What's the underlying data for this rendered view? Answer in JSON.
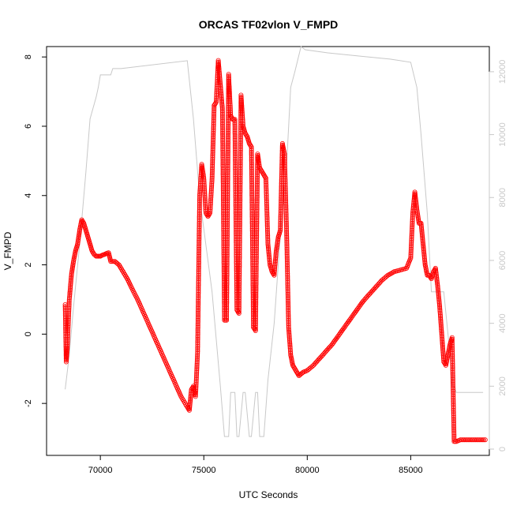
{
  "chart_data": {
    "type": "scatter",
    "title": "ORCAS TF02vlon V_FMPD",
    "xlabel": "UTC Seconds",
    "ylabel": "V_FMPD",
    "xlim": [
      67400,
      88800
    ],
    "ylim": [
      -3.5,
      8.3
    ],
    "x_ticks": [
      70000,
      75000,
      80000,
      85000
    ],
    "y_ticks": [
      -2,
      0,
      2,
      4,
      6,
      8
    ],
    "y2lim": [
      -200,
      12800
    ],
    "y2_ticks": [
      0,
      2000,
      4000,
      6000,
      8000,
      10000,
      12000
    ],
    "grid": false,
    "series": [
      {
        "marker": "open-circle",
        "color": "#ff0000",
        "y_axis": "left",
        "line_color": "#ff0000",
        "x": [
          68300,
          68350,
          68400,
          68450,
          68500,
          68600,
          68700,
          68800,
          68900,
          69000,
          69100,
          69200,
          69300,
          69400,
          69500,
          69600,
          69700,
          69800,
          69900,
          70000,
          70100,
          70200,
          70300,
          70400,
          70500,
          70700,
          70900,
          71100,
          71300,
          71500,
          71800,
          72100,
          72400,
          72700,
          73000,
          73300,
          73600,
          73900,
          74200,
          74300,
          74400,
          74500,
          74600,
          74700,
          74800,
          74900,
          75000,
          75100,
          75200,
          75300,
          75400,
          75500,
          75600,
          75700,
          75800,
          75900,
          76000,
          76100,
          76200,
          76300,
          76400,
          76500,
          76600,
          76700,
          76800,
          76900,
          77000,
          77100,
          77200,
          77300,
          77400,
          77500,
          77600,
          77700,
          77800,
          77900,
          78000,
          78100,
          78200,
          78300,
          78400,
          78500,
          78600,
          78700,
          78800,
          78900,
          79000,
          79100,
          79200,
          79300,
          79400,
          79500,
          79600,
          79700,
          79800,
          80000,
          80300,
          80600,
          80900,
          81200,
          81500,
          81800,
          82100,
          82400,
          82700,
          83000,
          83300,
          83600,
          83900,
          84200,
          84500,
          84800,
          85000,
          85100,
          85200,
          85300,
          85400,
          85500,
          85600,
          85700,
          85800,
          85900,
          86000,
          86100,
          86200,
          86300,
          86400,
          86500,
          86600,
          86700,
          86800,
          86900,
          87000,
          87100,
          87200,
          87400,
          87600,
          87800,
          88000,
          88200,
          88400,
          88600
        ],
        "y": [
          0.85,
          -0.8,
          -0.4,
          0.3,
          1.0,
          1.7,
          2.1,
          2.4,
          2.6,
          3.0,
          3.3,
          3.2,
          3.0,
          2.8,
          2.6,
          2.4,
          2.3,
          2.25,
          2.25,
          2.25,
          2.28,
          2.3,
          2.33,
          2.35,
          2.1,
          2.1,
          2.0,
          1.8,
          1.6,
          1.35,
          1.0,
          0.6,
          0.2,
          -0.2,
          -0.6,
          -1.0,
          -1.4,
          -1.8,
          -2.1,
          -2.2,
          -1.6,
          -1.5,
          -1.8,
          -0.5,
          4.0,
          4.9,
          4.5,
          3.5,
          3.4,
          3.5,
          4.5,
          6.6,
          6.7,
          7.9,
          7.2,
          6.5,
          0.4,
          0.4,
          7.5,
          6.3,
          6.2,
          6.2,
          0.7,
          0.6,
          6.9,
          6.0,
          5.8,
          5.7,
          5.5,
          5.4,
          0.2,
          0.1,
          5.2,
          4.8,
          4.7,
          4.6,
          4.5,
          2.6,
          2.0,
          1.8,
          1.7,
          2.4,
          2.8,
          3.0,
          5.5,
          5.2,
          3.0,
          0.2,
          -0.6,
          -0.9,
          -1.0,
          -1.1,
          -1.2,
          -1.15,
          -1.1,
          -1.05,
          -0.9,
          -0.7,
          -0.5,
          -0.3,
          -0.05,
          0.2,
          0.45,
          0.7,
          0.95,
          1.15,
          1.35,
          1.55,
          1.7,
          1.8,
          1.85,
          1.9,
          2.2,
          3.5,
          4.1,
          3.6,
          3.2,
          3.2,
          2.6,
          2.0,
          1.7,
          1.7,
          1.6,
          1.8,
          1.9,
          1.4,
          0.8,
          0.0,
          -0.8,
          -0.9,
          -0.6,
          -0.3,
          -0.1,
          -3.1,
          -3.1,
          -3.05,
          -3.05,
          -3.05,
          -3.05,
          -3.05,
          -3.05,
          -3.05
        ]
      },
      {
        "line_color": "#c8c8c8",
        "y_axis": "right",
        "x": [
          68300,
          68500,
          68700,
          69000,
          69300,
          69500,
          69800,
          69900,
          70000,
          70200,
          70500,
          70600,
          70700,
          71000,
          74200,
          74500,
          74800,
          75400,
          75800,
          76000,
          76200,
          76300,
          76500,
          76600,
          76700,
          76900,
          77000,
          77200,
          77300,
          77500,
          77600,
          77700,
          77900,
          78100,
          78400,
          78700,
          79000,
          79200,
          79400,
          79700,
          79900,
          81000,
          82500,
          84000,
          85000,
          85300,
          85500,
          85800,
          86000,
          86400,
          86600,
          86900,
          87000,
          87100,
          87200,
          87500,
          87800,
          88500
        ],
        "y": [
          1900,
          3000,
          4500,
          6500,
          8800,
          10500,
          11200,
          11500,
          11900,
          11900,
          11900,
          12100,
          12100,
          12100,
          12350,
          10500,
          8000,
          5000,
          2000,
          400,
          400,
          1800,
          1800,
          400,
          400,
          1800,
          1800,
          400,
          400,
          1800,
          1800,
          400,
          400,
          2200,
          4000,
          6800,
          9000,
          11500,
          12000,
          12800,
          12700,
          12600,
          12500,
          12400,
          12300,
          11500,
          10000,
          7500,
          5000,
          5000,
          5000,
          3000,
          2000,
          2000,
          1800,
          1800,
          1800,
          1800
        ]
      }
    ]
  }
}
